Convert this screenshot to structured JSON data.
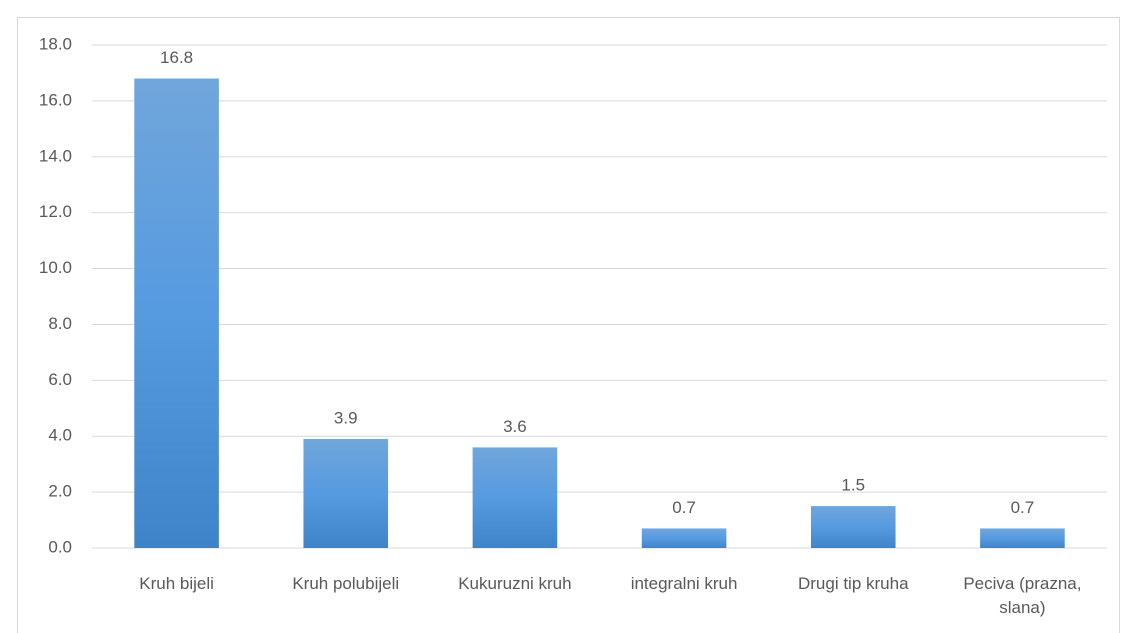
{
  "chart_data": {
    "type": "bar",
    "categories": [
      "Kruh bijeli",
      "Kruh polubijeli",
      "Kukuruzni kruh",
      "integralni kruh",
      "Drugi tip kruha",
      "Peciva (prazna, slana)"
    ],
    "values": [
      16.8,
      3.9,
      3.6,
      0.7,
      1.5,
      0.7
    ],
    "color": "#5b9bd5",
    "ylim": [
      0,
      18
    ],
    "yticks": [
      {
        "value": 0,
        "label": "0.0"
      },
      {
        "value": 2,
        "label": "2.0"
      },
      {
        "value": 4,
        "label": "4.0"
      },
      {
        "value": 6,
        "label": "6.0"
      },
      {
        "value": 8,
        "label": "8.0"
      },
      {
        "value": 10,
        "label": "10.0"
      },
      {
        "value": 12,
        "label": "12.0"
      },
      {
        "value": 14,
        "label": "14.0"
      },
      {
        "value": 16,
        "label": "16.0"
      },
      {
        "value": 18,
        "label": "18.0"
      }
    ],
    "grid": true
  }
}
